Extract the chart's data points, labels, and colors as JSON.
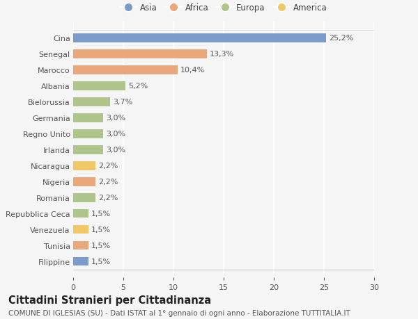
{
  "countries": [
    "Cina",
    "Senegal",
    "Marocco",
    "Albania",
    "Bielorussia",
    "Germania",
    "Regno Unito",
    "Irlanda",
    "Nicaragua",
    "Nigeria",
    "Romania",
    "Repubblica Ceca",
    "Venezuela",
    "Tunisia",
    "Filippine"
  ],
  "values": [
    25.2,
    13.3,
    10.4,
    5.2,
    3.7,
    3.0,
    3.0,
    3.0,
    2.2,
    2.2,
    2.2,
    1.5,
    1.5,
    1.5,
    1.5
  ],
  "labels": [
    "25,2%",
    "13,3%",
    "10,4%",
    "5,2%",
    "3,7%",
    "3,0%",
    "3,0%",
    "3,0%",
    "2,2%",
    "2,2%",
    "2,2%",
    "1,5%",
    "1,5%",
    "1,5%",
    "1,5%"
  ],
  "continents": [
    "Asia",
    "Africa",
    "Africa",
    "Europa",
    "Europa",
    "Europa",
    "Europa",
    "Europa",
    "America",
    "Africa",
    "Europa",
    "Europa",
    "America",
    "Africa",
    "Asia"
  ],
  "colors": {
    "Asia": "#7b9cc8",
    "Africa": "#e8a87c",
    "Europa": "#afc48a",
    "America": "#f0c866"
  },
  "xlim": [
    0,
    30
  ],
  "xticks": [
    0,
    5,
    10,
    15,
    20,
    25,
    30
  ],
  "background_color": "#f5f5f5",
  "plot_bg_color": "#f5f5f5",
  "title": "Cittadini Stranieri per Cittadinanza",
  "subtitle": "COMUNE DI IGLESIAS (SU) - Dati ISTAT al 1° gennaio di ogni anno - Elaborazione TUTTITALIA.IT",
  "title_fontsize": 10.5,
  "subtitle_fontsize": 7.5,
  "label_fontsize": 8,
  "tick_fontsize": 8,
  "bar_height": 0.55,
  "legend_order": [
    "Asia",
    "Africa",
    "Europa",
    "America"
  ],
  "grid_color": "#ffffff",
  "grid_linewidth": 1.5,
  "label_color": "#555555",
  "tick_color": "#555555"
}
